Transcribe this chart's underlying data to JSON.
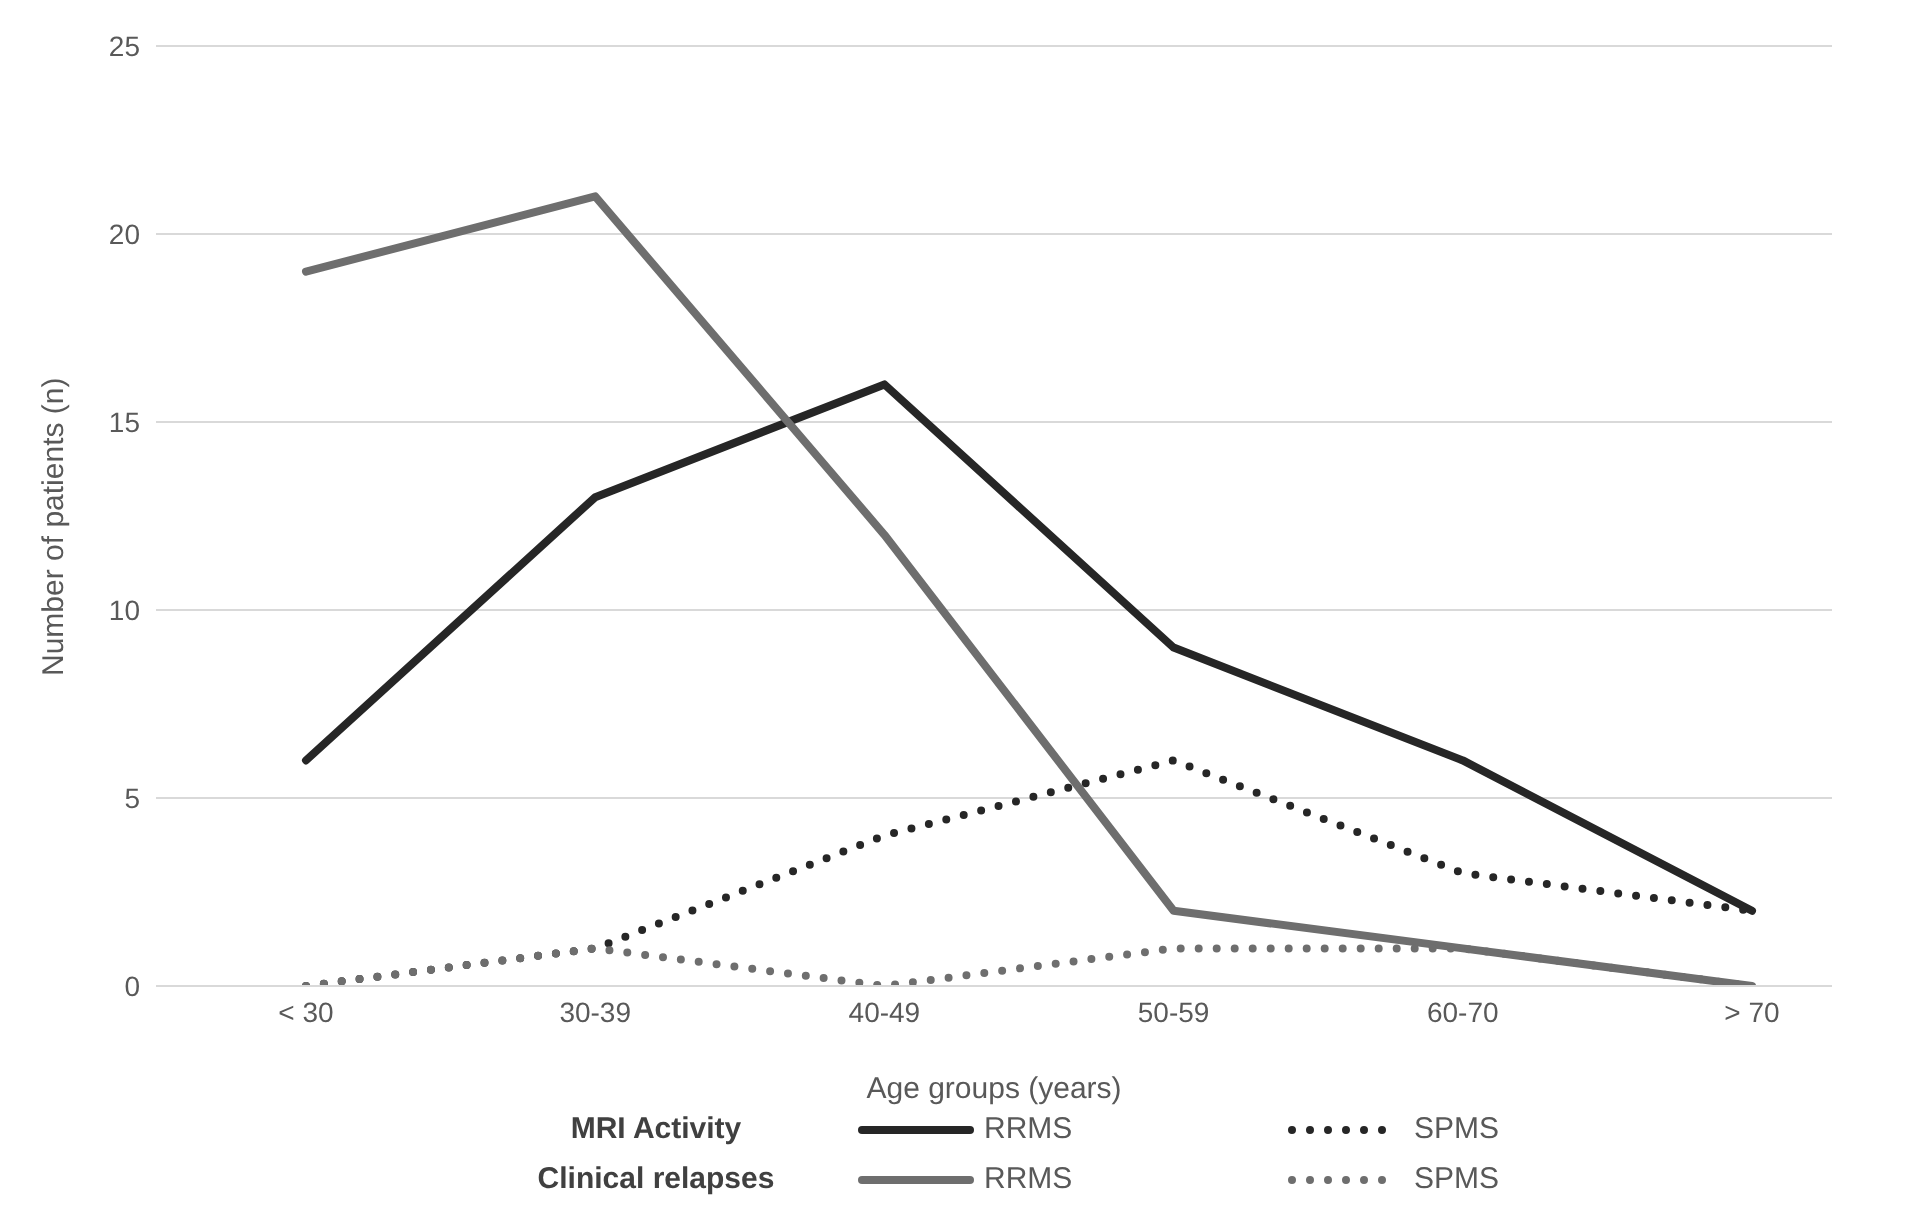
{
  "chart_data": {
    "type": "line",
    "xlabel": "Age groups (years)",
    "ylabel": "Number of patients (n)",
    "categories": [
      "< 30",
      "30-39",
      "40-49",
      "50-59",
      "60-70",
      "> 70"
    ],
    "ylim": [
      0,
      25
    ],
    "yticks": [
      0,
      5,
      10,
      15,
      20,
      25
    ],
    "grid": "y",
    "legend": "bottom",
    "annotations": [
      "MRI Activity",
      "Clinical relapses"
    ],
    "series": [
      {
        "name": "RRMS",
        "color": "#262626",
        "line_style": "solid",
        "values": [
          6,
          13,
          16,
          9,
          6,
          2
        ]
      },
      {
        "name": "SPMS",
        "color": "#262626",
        "line_style": "dotted",
        "values": [
          0,
          1,
          4,
          6,
          3,
          2
        ]
      },
      {
        "name": "RRMS",
        "color": "#6e6e6e",
        "line_style": "solid",
        "values": [
          19,
          21,
          12,
          2,
          1,
          0
        ]
      },
      {
        "name": "SPMS",
        "color": "#6e6e6e",
        "line_style": "dotted",
        "values": [
          0,
          1,
          0,
          1,
          1,
          0
        ]
      }
    ]
  }
}
